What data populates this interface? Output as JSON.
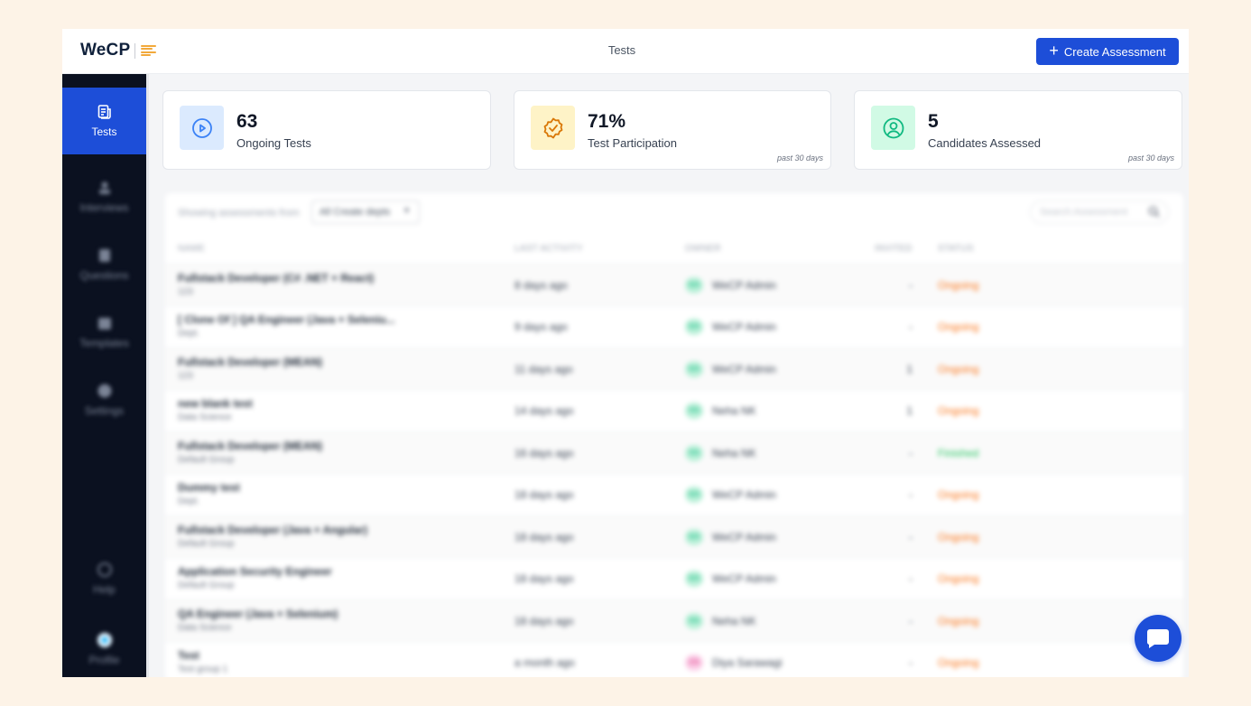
{
  "header": {
    "logo_text": "WeCP",
    "page_title": "Tests",
    "create_button_label": "Create Assessment"
  },
  "sidebar": {
    "items": [
      {
        "label": "Tests",
        "icon": "tests-icon",
        "active": true
      },
      {
        "label": "Interviews",
        "icon": "interviews-icon"
      },
      {
        "label": "Questions",
        "icon": "questions-icon"
      },
      {
        "label": "Templates",
        "icon": "templates-icon"
      },
      {
        "label": "Settings",
        "icon": "settings-icon"
      },
      {
        "label": "Help",
        "icon": "help-icon"
      },
      {
        "label": "Profile",
        "icon": "profile-icon"
      }
    ]
  },
  "stats": [
    {
      "value": "63",
      "label": "Ongoing Tests",
      "period": "",
      "icon": "play-circle-icon",
      "icon_color": "#3b82f6",
      "icon_bg": "#dbeafe"
    },
    {
      "value": "71%",
      "label": "Test Participation",
      "period": "past 30 days",
      "icon": "check-badge-icon",
      "icon_color": "#d97706",
      "icon_bg": "#fef3c7"
    },
    {
      "value": "5",
      "label": "Candidates Assessed",
      "period": "past 30 days",
      "icon": "user-circle-icon",
      "icon_color": "#10b981",
      "icon_bg": "#d1fae5"
    }
  ],
  "table": {
    "filter_label": "Showing assessments from",
    "filter_value": "All Create depts",
    "search_placeholder": "Search Assessment",
    "columns": [
      "NAME",
      "LAST ACTIVITY",
      "OWNER",
      "INVITED",
      "STATUS"
    ],
    "rows": [
      {
        "name": "Fullstack Developer (C# .NET + React)",
        "group": "123",
        "activity": "8 days ago",
        "avatar": "WA",
        "owner": "WeCP Admin",
        "invited": "-",
        "status": "Ongoing"
      },
      {
        "name": "[ Clone Of ] QA Engineer (Java + Seleniu...",
        "group": "Dept.",
        "activity": "9 days ago",
        "avatar": "WA",
        "owner": "WeCP Admin",
        "invited": "-",
        "status": "Ongoing"
      },
      {
        "name": "Fullstack Developer (MEAN)",
        "group": "123",
        "activity": "11 days ago",
        "avatar": "WA",
        "owner": "WeCP Admin",
        "invited": "1",
        "status": "Ongoing"
      },
      {
        "name": "new blank test",
        "group": "Data Science",
        "activity": "14 days ago",
        "avatar": "NN",
        "owner": "Neha NK",
        "invited": "1",
        "status": "Ongoing"
      },
      {
        "name": "Fullstack Developer (MEAN)",
        "group": "Default Group",
        "activity": "16 days ago",
        "avatar": "NN",
        "owner": "Neha NK",
        "invited": "-",
        "status": "Finished"
      },
      {
        "name": "Dummy test",
        "group": "Dept.",
        "activity": "18 days ago",
        "avatar": "WA",
        "owner": "WeCP Admin",
        "invited": "-",
        "status": "Ongoing"
      },
      {
        "name": "Fullstack Developer (Java + Angular)",
        "group": "Default Group",
        "activity": "18 days ago",
        "avatar": "WA",
        "owner": "WeCP Admin",
        "invited": "-",
        "status": "Ongoing"
      },
      {
        "name": "Application Security Engineer",
        "group": "Default Group",
        "activity": "18 days ago",
        "avatar": "WA",
        "owner": "WeCP Admin",
        "invited": "-",
        "status": "Ongoing"
      },
      {
        "name": "QA Engineer (Java + Selenium)",
        "group": "Data Science",
        "activity": "18 days ago",
        "avatar": "NN",
        "owner": "Neha NK",
        "invited": "-",
        "status": "Ongoing"
      },
      {
        "name": "Test",
        "group": "Test group 1",
        "activity": "a month ago",
        "avatar": "DS",
        "owner": "Diya Sarawagi",
        "invited": "-",
        "status": "Ongoing"
      }
    ]
  },
  "colors": {
    "accent": "#1d4ed8",
    "sidebar_bg": "#0b1120",
    "status_ongoing": "#f97316",
    "status_finished": "#22c55e"
  },
  "chat_icon": "chat-bubble-icon"
}
